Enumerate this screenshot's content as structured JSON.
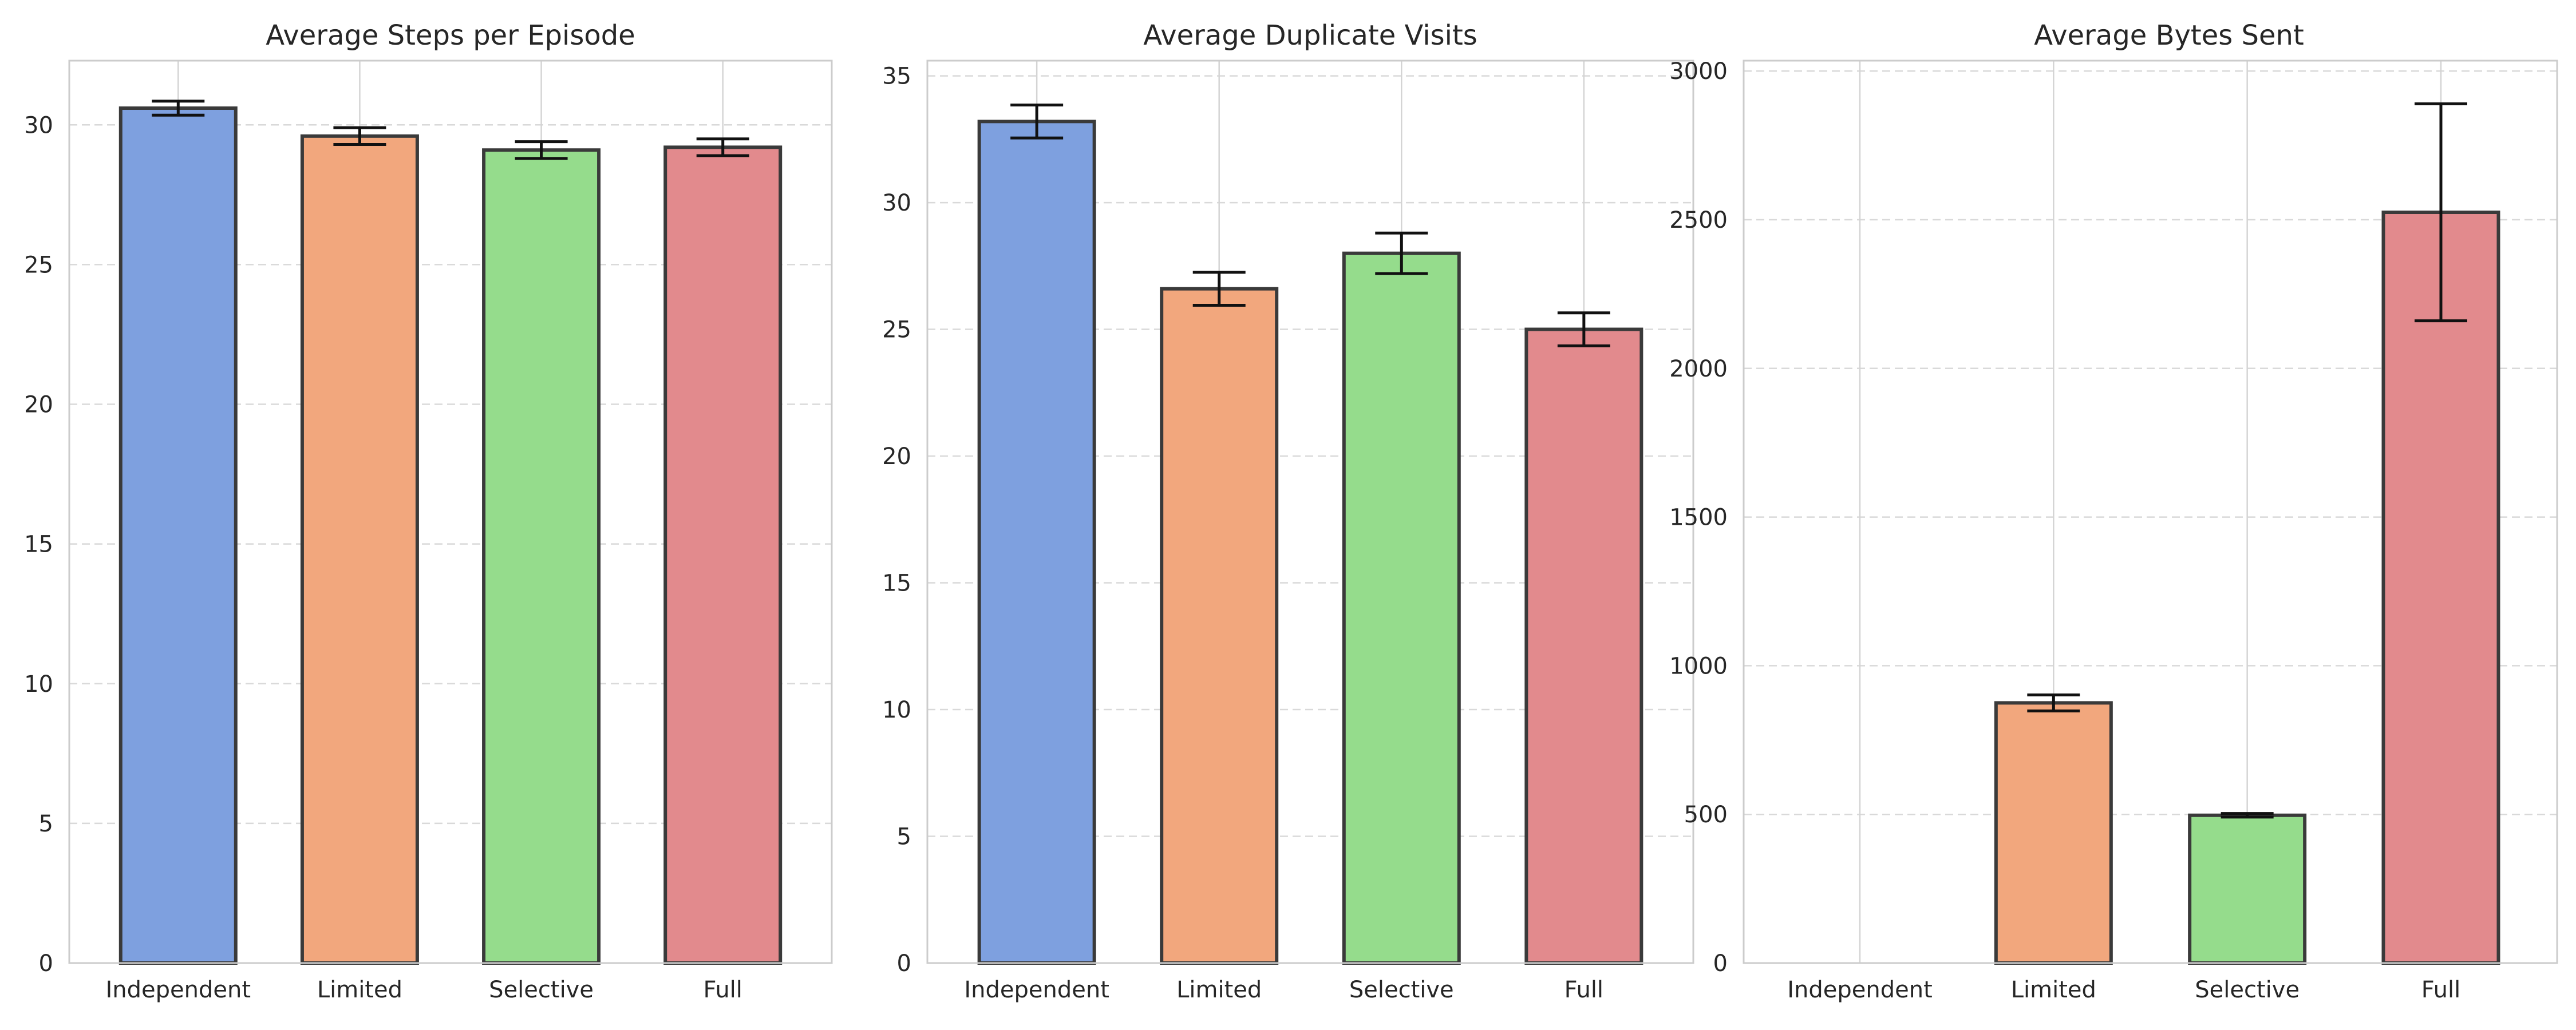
{
  "chart_data": [
    {
      "type": "bar",
      "title": "Average Steps per Episode",
      "xlabel": "",
      "ylabel": "",
      "categories": [
        "Independent",
        "Limited",
        "Selective",
        "Full"
      ],
      "values": [
        30.6,
        29.6,
        29.1,
        29.2
      ],
      "errors": [
        0.25,
        0.3,
        0.3,
        0.3
      ],
      "colors": [
        "#7ea0df",
        "#f2a77d",
        "#95dc8c",
        "#e28a8d"
      ],
      "ylim": [
        0,
        32.3
      ],
      "yticks": [
        0,
        5,
        10,
        15,
        20,
        25,
        30
      ],
      "ytick_labels": [
        "0",
        "5",
        "10",
        "15",
        "20",
        "25",
        "30"
      ],
      "grid": true
    },
    {
      "type": "bar",
      "title": "Average Duplicate Visits",
      "xlabel": "",
      "ylabel": "",
      "categories": [
        "Independent",
        "Limited",
        "Selective",
        "Full"
      ],
      "values": [
        33.2,
        26.6,
        28.0,
        25.0
      ],
      "errors": [
        0.65,
        0.65,
        0.8,
        0.65
      ],
      "colors": [
        "#7ea0df",
        "#f2a77d",
        "#95dc8c",
        "#e28a8d"
      ],
      "ylim": [
        0,
        35.6
      ],
      "yticks": [
        0,
        5,
        10,
        15,
        20,
        25,
        30,
        35
      ],
      "ytick_labels": [
        "0",
        "5",
        "10",
        "15",
        "20",
        "25",
        "30",
        "35"
      ],
      "grid": true
    },
    {
      "type": "bar",
      "title": "Average Bytes Sent",
      "xlabel": "",
      "ylabel": "",
      "categories": [
        "Independent",
        "Limited",
        "Selective",
        "Full"
      ],
      "values": [
        0,
        875,
        497,
        2525
      ],
      "errors": [
        0,
        27,
        6,
        365
      ],
      "colors": [
        "#7ea0df",
        "#f2a77d",
        "#95dc8c",
        "#e28a8d"
      ],
      "ylim": [
        0,
        3035
      ],
      "yticks": [
        0,
        500,
        1000,
        1500,
        2000,
        2500,
        3000
      ],
      "ytick_labels": [
        "0",
        "500",
        "1000",
        "1500",
        "2000",
        "2500",
        "3000"
      ],
      "grid": true
    }
  ]
}
